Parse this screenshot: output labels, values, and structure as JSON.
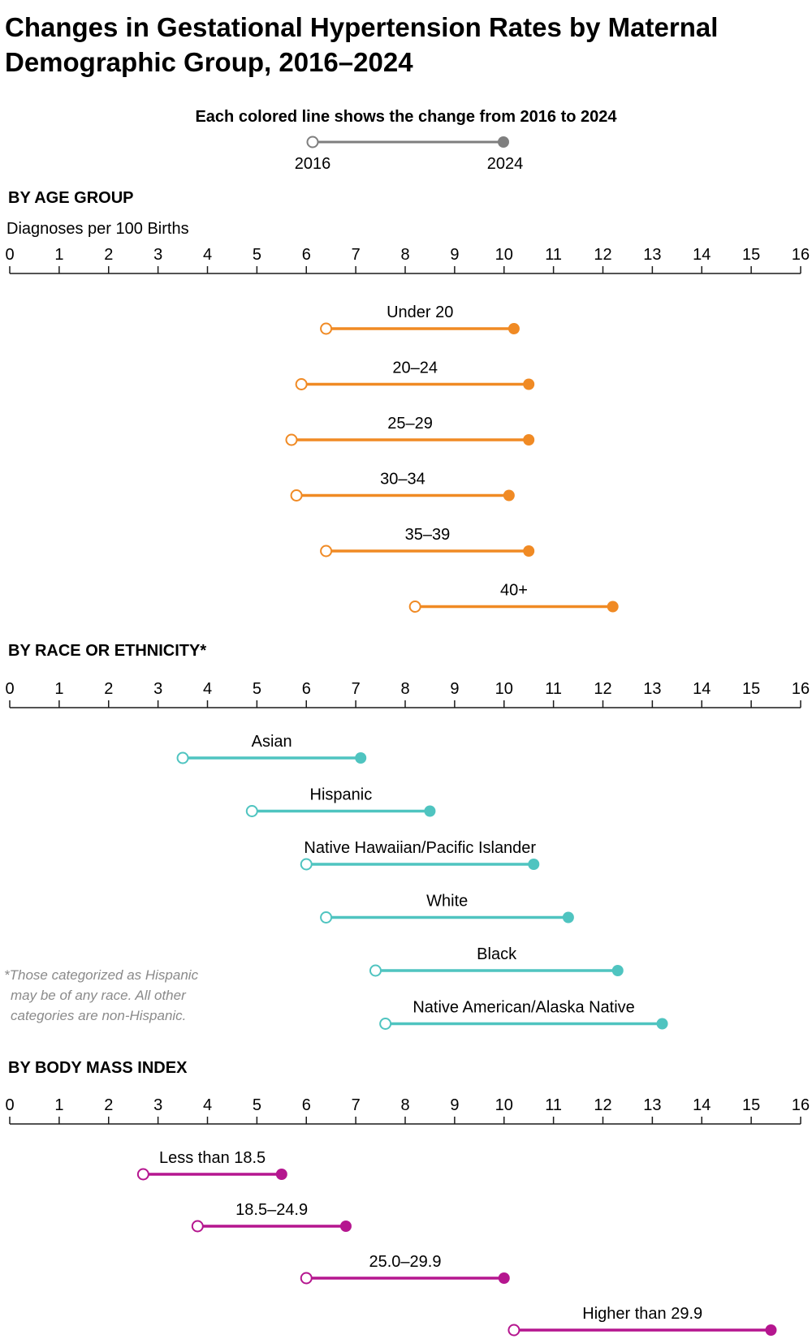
{
  "chart_data": {
    "type": "dumbbell",
    "title_lines": [
      "Changes in Gestational Hypertension Rates by Maternal",
      "Demographic Group, 2016–2024"
    ],
    "legend": {
      "title": "Each colored line shows the change from 2016 to 2024",
      "start_label": "2016",
      "end_label": "2024"
    },
    "xlabel": "Diagnoses per 100 Births",
    "xlim": [
      0,
      16
    ],
    "ticks": [
      "0",
      "1",
      "2",
      "3",
      "4",
      "5",
      "6",
      "7",
      "8",
      "9",
      "10",
      "11",
      "12",
      "13",
      "14",
      "15",
      "16"
    ],
    "footnote": [
      "*Those categorized as Hispanic",
      "may be of any race. All other",
      "categories are non-Hispanic."
    ],
    "groups": [
      {
        "title": "BY AGE GROUP",
        "color": "#f08a24",
        "categories": [
          "Under 20",
          "20–24",
          "25–29",
          "30–34",
          "35–39",
          "40+"
        ],
        "start": [
          6.4,
          5.9,
          5.7,
          5.8,
          6.4,
          8.2
        ],
        "end": [
          10.2,
          10.5,
          10.5,
          10.1,
          10.5,
          12.2
        ]
      },
      {
        "title": "BY RACE OR ETHNICITY*",
        "color": "#4fc4c0",
        "categories": [
          "Asian",
          "Hispanic",
          "Native Hawaiian/Pacific Islander",
          "White",
          "Black",
          "Native American/Alaska Native"
        ],
        "start": [
          3.5,
          4.9,
          6.0,
          6.4,
          7.4,
          7.6
        ],
        "end": [
          7.1,
          8.5,
          10.6,
          11.3,
          12.3,
          13.2
        ]
      },
      {
        "title": "BY BODY MASS INDEX",
        "color": "#b5168f",
        "categories": [
          "Less than 18.5",
          "18.5–24.9",
          "25.0–29.9",
          "Higher than 29.9"
        ],
        "start": [
          2.7,
          3.8,
          6.0,
          10.2
        ],
        "end": [
          5.5,
          6.8,
          10.0,
          15.4
        ]
      }
    ]
  }
}
